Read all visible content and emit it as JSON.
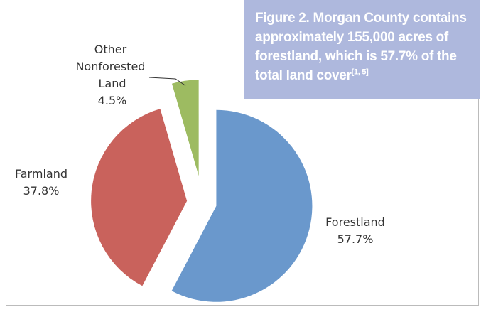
{
  "chart_data": {
    "type": "pie",
    "title": "Figure 2. Morgan County contains approximately 155,000 acres of forestland, which is 57.7% of the total land cover",
    "title_superscript": "[1, 5]",
    "categories": [
      "Forestland",
      "Farmland",
      "Other Nonforested Land"
    ],
    "values": [
      57.7,
      37.8,
      4.5
    ],
    "value_labels": [
      "57.7%",
      "37.8%",
      "4.5%"
    ],
    "colors": [
      "#6a98cc",
      "#c9625c",
      "#9dbb61"
    ]
  }
}
